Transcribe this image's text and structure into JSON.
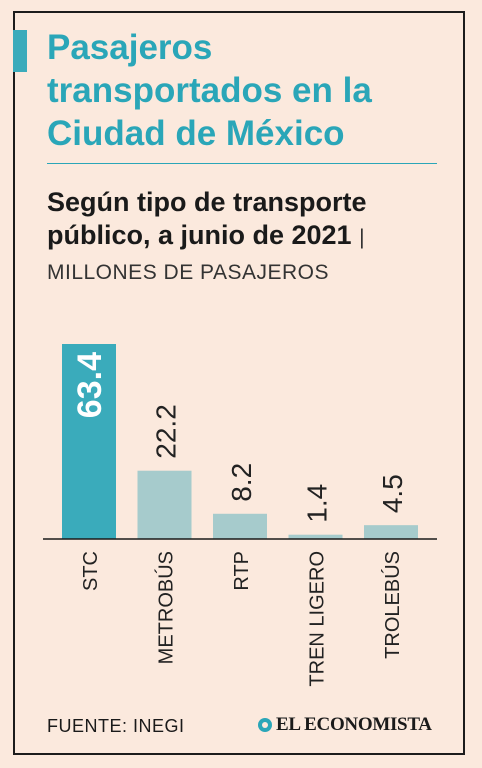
{
  "header": {
    "title": "Pasajeros transportados en la Ciudad de México",
    "subtitle_bold": "Según tipo de transporte público, a junio de 2021",
    "separator": "|",
    "subtitle_unit": "MILLONES DE PASAJEROS"
  },
  "footer": {
    "source": "FUENTE: INEGI",
    "brand": "EL ECONOMISTA",
    "brand_icon": "economista-logo-icon"
  },
  "colors": {
    "background": "#fbe9dd",
    "highlight": "#3aabbb",
    "bars": "#a6cbcc",
    "axis": "#1a1a1a"
  },
  "chart_data": {
    "type": "bar",
    "title": "Pasajeros transportados en la Ciudad de México",
    "subtitle": "Según tipo de transporte público, a junio de 2021 | MILLONES DE PASAJEROS",
    "categories": [
      "STC",
      "METROBÚS",
      "RTP",
      "TREN LIGERO",
      "TROLEBÚS"
    ],
    "values": [
      63.4,
      22.2,
      8.2,
      1.4,
      4.5
    ],
    "value_labels": [
      "63.4",
      "22.2",
      "8.2",
      "1.4",
      "4.5"
    ],
    "highlight_index": 0,
    "ylim": [
      0,
      63.4
    ],
    "grid": false,
    "legend": "none"
  }
}
